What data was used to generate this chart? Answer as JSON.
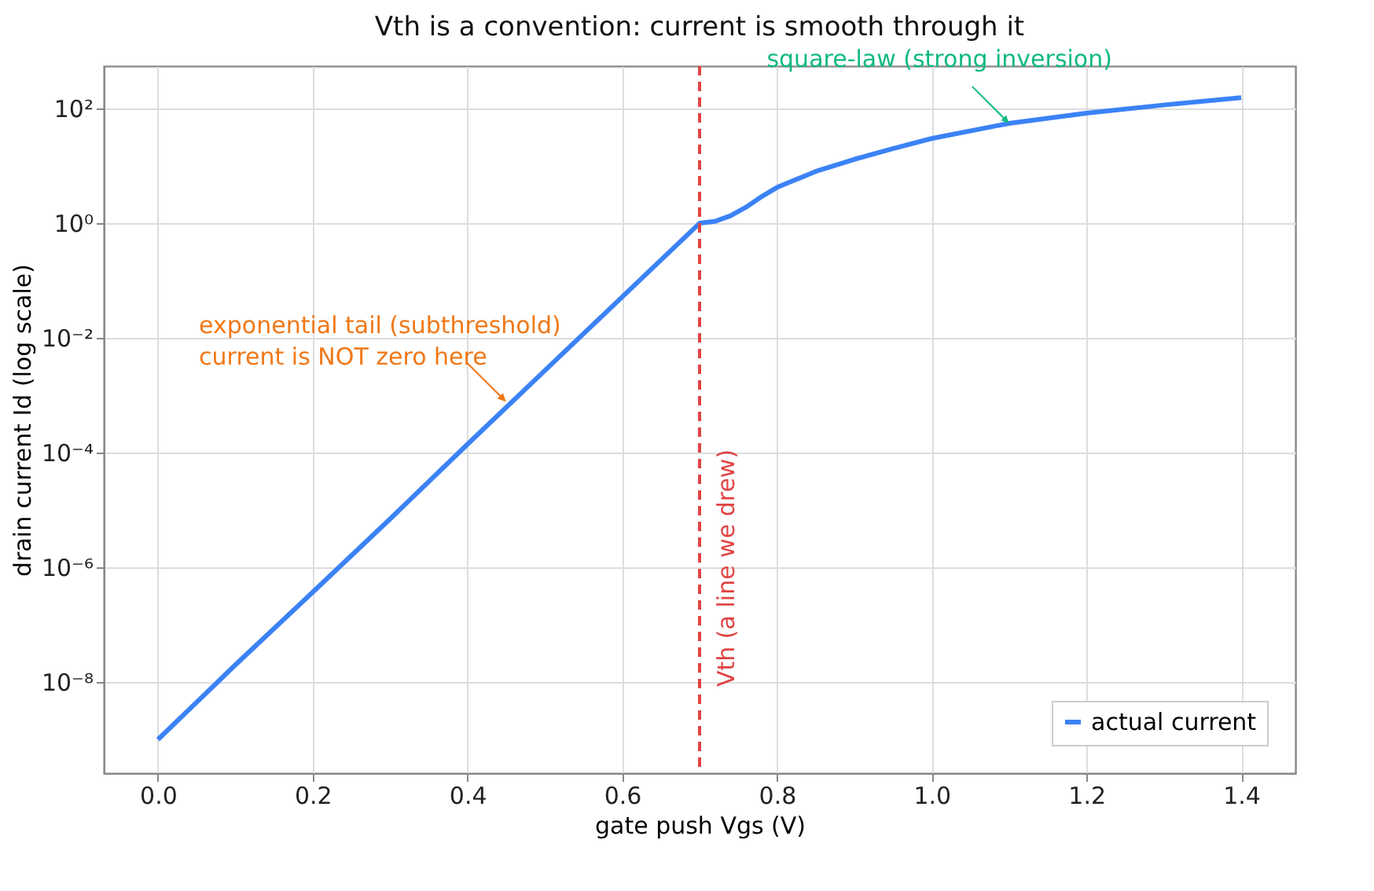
{
  "chart_data": {
    "type": "line",
    "title": "Vth is a convention: current is smooth through it",
    "xlabel": "gate push  Vgs  (V)",
    "ylabel": "drain current  Id  (log scale)",
    "x": [
      0,
      0.1,
      0.2,
      0.3,
      0.4,
      0.5,
      0.6,
      0.7,
      0.72,
      0.74,
      0.76,
      0.78,
      0.8,
      0.85,
      0.9,
      0.95,
      1.0,
      1.1,
      1.2,
      1.3,
      1.4
    ],
    "series": [
      {
        "name": "actual current",
        "color": "#3b82f6",
        "values": [
          1e-09,
          2e-08,
          3.7e-07,
          7e-06,
          0.00014,
          0.0027,
          0.052,
          1.0,
          1.08,
          1.35,
          1.9,
          2.9,
          4.2,
          8,
          13,
          20,
          30,
          55,
          83,
          115,
          155
        ]
      }
    ],
    "log": "y",
    "xlim": [
      -0.07,
      1.47
    ],
    "ylim": [
      2.6e-10,
      550
    ],
    "xticks": [
      {
        "value": 0,
        "label": "0.0"
      },
      0.2,
      0.4,
      0.6,
      0.8,
      {
        "value": 1,
        "label": "1.0"
      },
      1.2,
      1.4
    ],
    "yticks": [
      {
        "value": 1e-08,
        "label": "10⁻⁸"
      },
      {
        "value": 1e-06,
        "label": "10⁻⁶"
      },
      {
        "value": 0.0001,
        "label": "10⁻⁴"
      },
      {
        "value": 0.01,
        "label": "10⁻²"
      },
      {
        "value": 1,
        "label": "10⁰"
      },
      {
        "value": 100,
        "label": "10²"
      }
    ],
    "grid": true,
    "legend": "bottom right",
    "ref_lines": [
      {
        "axis": "x",
        "value": 0.7,
        "label": "Vth (a line we drew)",
        "color": "#e04444",
        "line_style": "dashed"
      }
    ],
    "annotations": [
      {
        "text": "exponential tail (subthreshold)\ncurrent is NOT zero here",
        "x": 0.45,
        "y": 0.00077
      },
      {
        "text": "square-law (strong inversion)",
        "x": 1.1,
        "y": 55
      }
    ]
  }
}
